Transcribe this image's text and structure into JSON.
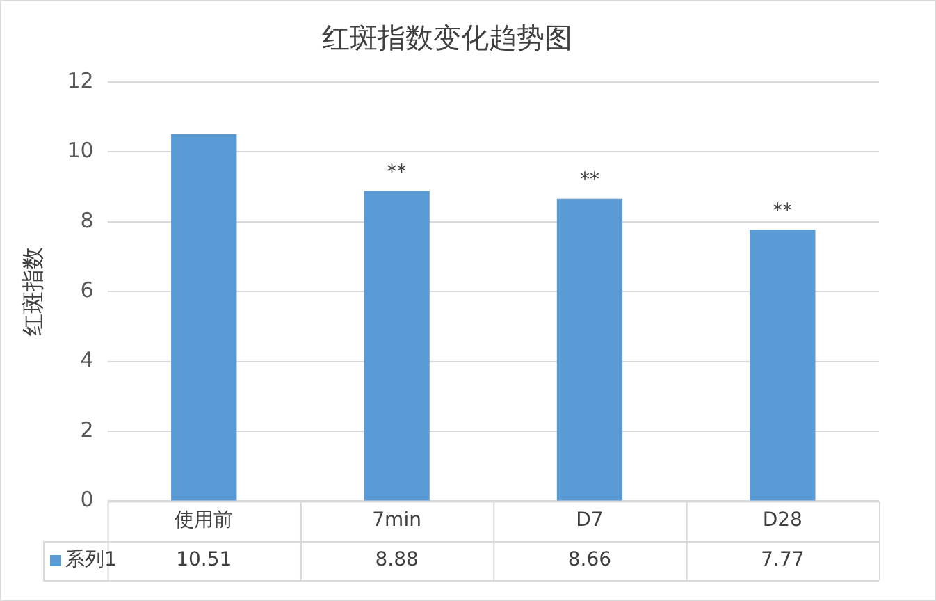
{
  "chart_data": {
    "type": "bar",
    "title": "红斑指数变化趋势图",
    "ylabel": "红斑指数",
    "categories": [
      "使用前",
      "7min",
      "D7",
      "D28"
    ],
    "series": [
      {
        "name": "系列1",
        "color": "#5b9bd5",
        "values": [
          10.51,
          8.88,
          8.66,
          7.77
        ]
      }
    ],
    "ylim": [
      0,
      12
    ],
    "yticks": [
      0,
      2,
      4,
      6,
      8,
      10,
      12
    ],
    "grid": "y",
    "legend": "bottom left",
    "data_labels": true,
    "annotations": [
      {
        "text": "**",
        "x": "7min",
        "y": 8.88
      },
      {
        "text": "**",
        "x": "D7",
        "y": 8.66
      },
      {
        "text": "**",
        "x": "D28",
        "y": 7.77
      }
    ]
  }
}
